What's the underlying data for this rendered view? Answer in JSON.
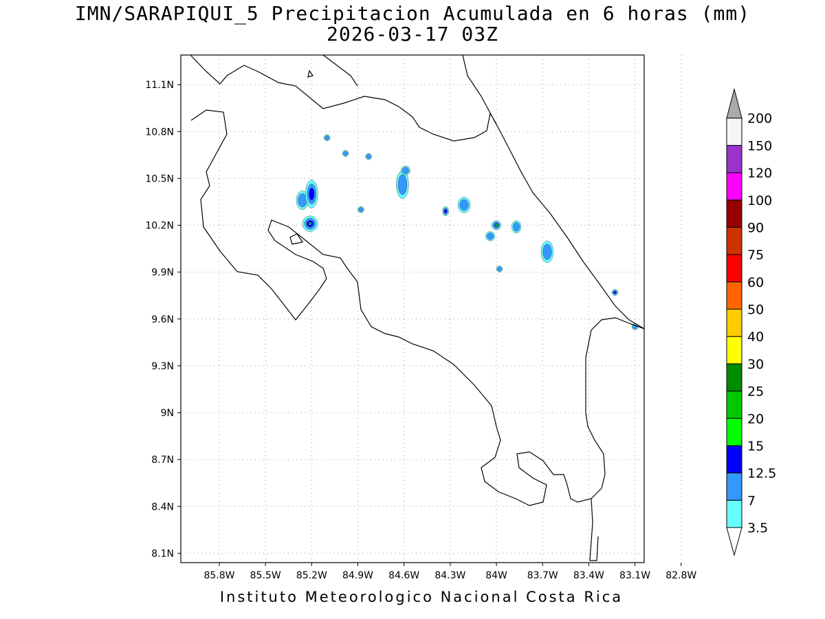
{
  "title": {
    "line1": "IMN/SARAPIQUI_5 Precipitacion Acumulada en 6 horas (mm)",
    "line2": "2026-03-17 03Z"
  },
  "footer": "Instituto Meteorologico Nacional Costa Rica",
  "axes": {
    "lon_ticks": [
      "85.8W",
      "85.5W",
      "85.2W",
      "84.9W",
      "84.6W",
      "84.3W",
      "84W",
      "83.7W",
      "83.4W",
      "83.1W",
      "82.8W"
    ],
    "lat_ticks": [
      "11.1N",
      "10.8N",
      "10.5N",
      "10.2N",
      "9.9N",
      "9.6N",
      "9.3N",
      "9N",
      "8.7N",
      "8.4N",
      "8.1N"
    ],
    "lon_range": [
      -86.05,
      -83.04
    ],
    "lat_range": [
      8.04,
      11.29
    ],
    "grid": true
  },
  "colorbar": {
    "labels": [
      "3.5",
      "7",
      "12.5",
      "15",
      "20",
      "25",
      "30",
      "40",
      "50",
      "60",
      "75",
      "90",
      "100",
      "120",
      "150",
      "200"
    ],
    "colors": [
      "#66ffff",
      "#3399ff",
      "#0000ff",
      "#00ff00",
      "#00c800",
      "#008c00",
      "#ffff00",
      "#ffcc00",
      "#ff6600",
      "#ff0000",
      "#cc3300",
      "#990000",
      "#ff00ff",
      "#9933cc",
      "#f5f5f5",
      "#aaaaaa"
    ]
  },
  "precip_cells": [
    {
      "lon": -85.26,
      "lat": 10.36,
      "rx": 0.04,
      "ry": 0.06,
      "level": 1
    },
    {
      "lon": -85.2,
      "lat": 10.4,
      "rx": 0.04,
      "ry": 0.09,
      "level": 2
    },
    {
      "lon": -85.21,
      "lat": 10.21,
      "rx": 0.05,
      "ry": 0.05,
      "level": 4
    },
    {
      "lon": -84.61,
      "lat": 10.46,
      "rx": 0.04,
      "ry": 0.09,
      "level": 1
    },
    {
      "lon": -84.59,
      "lat": 10.55,
      "rx": 0.03,
      "ry": 0.03,
      "level": 1
    },
    {
      "lon": -84.33,
      "lat": 10.29,
      "rx": 0.02,
      "ry": 0.03,
      "level": 2
    },
    {
      "lon": -84.21,
      "lat": 10.33,
      "rx": 0.04,
      "ry": 0.05,
      "level": 1
    },
    {
      "lon": -84.0,
      "lat": 10.2,
      "rx": 0.03,
      "ry": 0.03,
      "level": 4
    },
    {
      "lon": -83.87,
      "lat": 10.19,
      "rx": 0.03,
      "ry": 0.04,
      "level": 1
    },
    {
      "lon": -83.67,
      "lat": 10.03,
      "rx": 0.04,
      "ry": 0.07,
      "level": 1
    },
    {
      "lon": -83.98,
      "lat": 9.92,
      "rx": 0.02,
      "ry": 0.02,
      "level": 1
    },
    {
      "lon": -83.23,
      "lat": 9.77,
      "rx": 0.02,
      "ry": 0.02,
      "level": 2
    },
    {
      "lon": -83.1,
      "lat": 9.55,
      "rx": 0.02,
      "ry": 0.02,
      "level": 1
    },
    {
      "lon": -84.98,
      "lat": 10.66,
      "rx": 0.02,
      "ry": 0.02,
      "level": 1
    },
    {
      "lon": -84.83,
      "lat": 10.64,
      "rx": 0.02,
      "ry": 0.02,
      "level": 1
    },
    {
      "lon": -85.1,
      "lat": 10.76,
      "rx": 0.02,
      "ry": 0.02,
      "level": 1
    },
    {
      "lon": -84.88,
      "lat": 10.3,
      "rx": 0.02,
      "ry": 0.02,
      "level": 1
    },
    {
      "lon": -84.04,
      "lat": 10.13,
      "rx": 0.03,
      "ry": 0.03,
      "level": 1
    }
  ]
}
